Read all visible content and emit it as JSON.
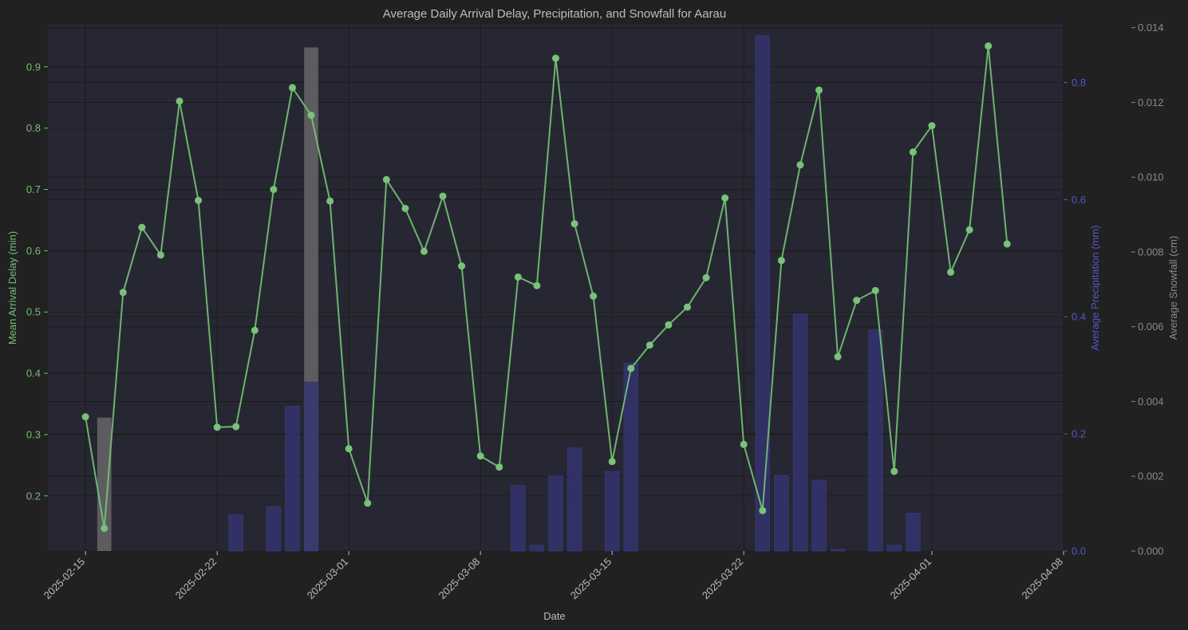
{
  "colors": {
    "background": "#212121",
    "plot_background": "#272733",
    "delay_axis": "#77bb77",
    "delay_line": "#77c377",
    "precip_axis": "#5555cc",
    "precip_bar": "#34346e",
    "snow_axis": "#8a8a8a",
    "snow_bar": "#6b6b6b",
    "text": "#bdbdbd",
    "grid": "#1c1c1c"
  },
  "chart_data": {
    "type": "line",
    "title": "Average Daily Arrival Delay, Precipitation, and Snowfall for Aarau",
    "xlabel": "Date",
    "x_ticks": [
      "2025-02-15",
      "2025-02-22",
      "2025-03-01",
      "2025-03-08",
      "2025-03-15",
      "2025-03-22",
      "2025-04-01",
      "2025-04-08"
    ],
    "xlim": [
      "2025-02-13",
      "2025-04-08"
    ],
    "grid": true,
    "series": [
      {
        "name": "Mean Arrival Delay (min)",
        "kind": "line",
        "axis": "left",
        "ylabel": "Mean Arrival Delay (min)",
        "ylim": [
          0.11,
          0.97
        ],
        "yticks": [
          "0.2",
          "0.3",
          "0.4",
          "0.5",
          "0.6",
          "0.7",
          "0.8",
          "0.9"
        ],
        "x": [
          "2025-02-15",
          "2025-02-16",
          "2025-02-17",
          "2025-02-18",
          "2025-02-19",
          "2025-02-20",
          "2025-02-21",
          "2025-02-22",
          "2025-02-23",
          "2025-02-24",
          "2025-02-25",
          "2025-02-26",
          "2025-02-27",
          "2025-02-28",
          "2025-03-01",
          "2025-03-02",
          "2025-03-03",
          "2025-03-04",
          "2025-03-05",
          "2025-03-06",
          "2025-03-07",
          "2025-03-08",
          "2025-03-09",
          "2025-03-10",
          "2025-03-11",
          "2025-03-12",
          "2025-03-13",
          "2025-03-14",
          "2025-03-15",
          "2025-03-16",
          "2025-03-17",
          "2025-03-18",
          "2025-03-19",
          "2025-03-20",
          "2025-03-21",
          "2025-03-22",
          "2025-03-23",
          "2025-03-24",
          "2025-03-25",
          "2025-03-26",
          "2025-03-27",
          "2025-03-28",
          "2025-03-29",
          "2025-03-30",
          "2025-03-31",
          "2025-04-01",
          "2025-04-02",
          "2025-04-03",
          "2025-04-04",
          "2025-04-05"
        ],
        "values": [
          0.329,
          0.147,
          0.532,
          0.638,
          0.593,
          0.844,
          0.682,
          0.312,
          0.313,
          0.47,
          0.7,
          0.866,
          0.821,
          0.681,
          0.277,
          0.188,
          0.716,
          0.669,
          0.599,
          0.689,
          0.575,
          0.265,
          0.247,
          0.557,
          0.543,
          0.914,
          0.644,
          0.526,
          0.256,
          0.408,
          0.446,
          0.479,
          0.508,
          0.556,
          0.686,
          0.284,
          0.176,
          0.584,
          0.74,
          0.862,
          0.427,
          0.519,
          0.535,
          0.24,
          0.761,
          0.804,
          0.565,
          0.634,
          0.934,
          0.611
        ]
      },
      {
        "name": "Average Precipitation (mm)",
        "kind": "bar",
        "axis": "right",
        "ylabel": "Average Precipitation (mm)",
        "ylim": [
          0,
          0.9
        ],
        "yticks": [
          "0.0",
          "0.2",
          "0.4",
          "0.6",
          "0.8"
        ],
        "x": [
          "2025-02-23",
          "2025-02-25",
          "2025-02-26",
          "2025-02-27",
          "2025-03-10",
          "2025-03-11",
          "2025-03-12",
          "2025-03-13",
          "2025-03-15",
          "2025-03-16",
          "2025-03-23",
          "2025-03-24",
          "2025-03-25",
          "2025-03-26",
          "2025-03-27",
          "2025-03-29",
          "2025-03-30",
          "2025-03-31"
        ],
        "values": [
          0.062,
          0.076,
          0.247,
          0.289,
          0.112,
          0.01,
          0.128,
          0.176,
          0.136,
          0.321,
          0.88,
          0.129,
          0.405,
          0.121,
          0.003,
          0.378,
          0.01,
          0.065
        ]
      },
      {
        "name": "Average Snowfall (cm)",
        "kind": "bar",
        "axis": "right-outer",
        "ylabel": "Average Snowfall (cm)",
        "ylim": [
          0,
          0.0141
        ],
        "yticks": [
          "0.000",
          "0.002",
          "0.004",
          "0.006",
          "0.008",
          "0.010",
          "0.012",
          "0.014"
        ],
        "x": [
          "2025-02-16",
          "2025-02-27"
        ],
        "values": [
          0.00357,
          0.01347
        ]
      }
    ]
  }
}
